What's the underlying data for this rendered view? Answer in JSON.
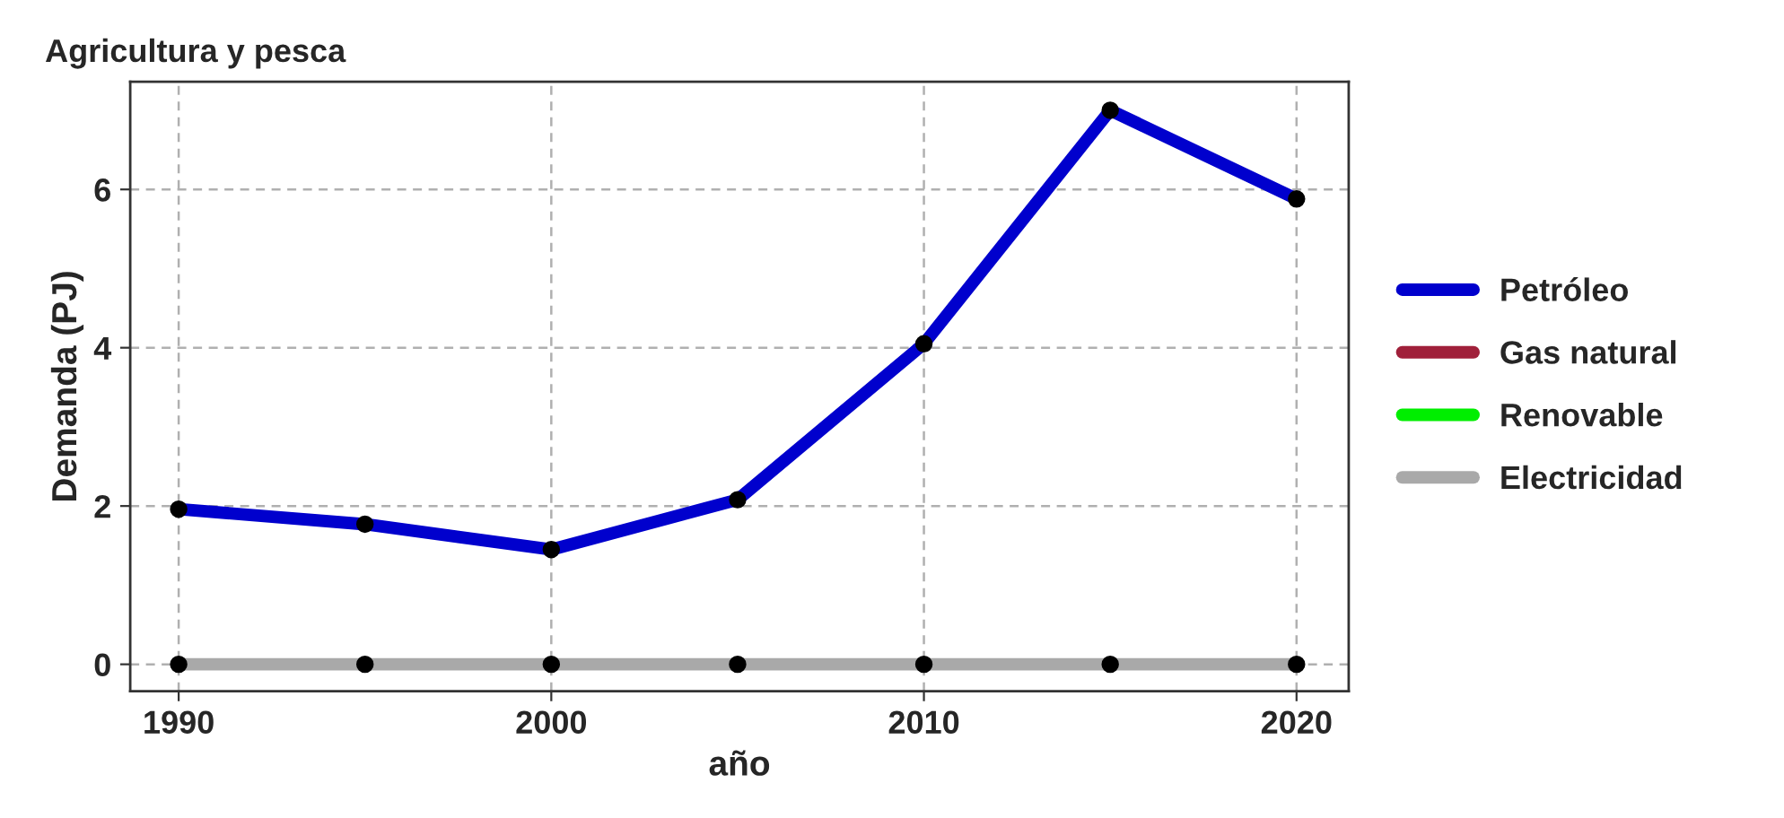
{
  "chart_data": {
    "type": "line",
    "title": "Agricultura y pesca",
    "xlabel": "año",
    "ylabel": "Demanda (PJ)",
    "x": [
      1990,
      1995,
      2000,
      2005,
      2010,
      2015,
      2020
    ],
    "series": [
      {
        "name": "Petróleo",
        "color": "#0000cd",
        "values": [
          1.96,
          1.77,
          1.45,
          2.08,
          4.05,
          7.0,
          5.88
        ]
      },
      {
        "name": "Gas natural",
        "color": "#a0203a",
        "values": [
          null,
          null,
          null,
          null,
          null,
          null,
          null
        ]
      },
      {
        "name": "Renovable",
        "color": "#00ee00",
        "values": [
          null,
          null,
          null,
          null,
          null,
          null,
          null
        ]
      },
      {
        "name": "Electricidad",
        "color": "#a9a9a9",
        "values": [
          0,
          0,
          0,
          0,
          0,
          0,
          0
        ]
      }
    ],
    "xlim": [
      1988.7,
      2021.4
    ],
    "xticks": [
      1990,
      2000,
      2010,
      2020
    ],
    "ylim": [
      -0.34,
      7.36
    ],
    "yticks": [
      0,
      2,
      4,
      6
    ],
    "grid": true,
    "legend": "right",
    "marker": "circle",
    "line_style": "solid"
  }
}
